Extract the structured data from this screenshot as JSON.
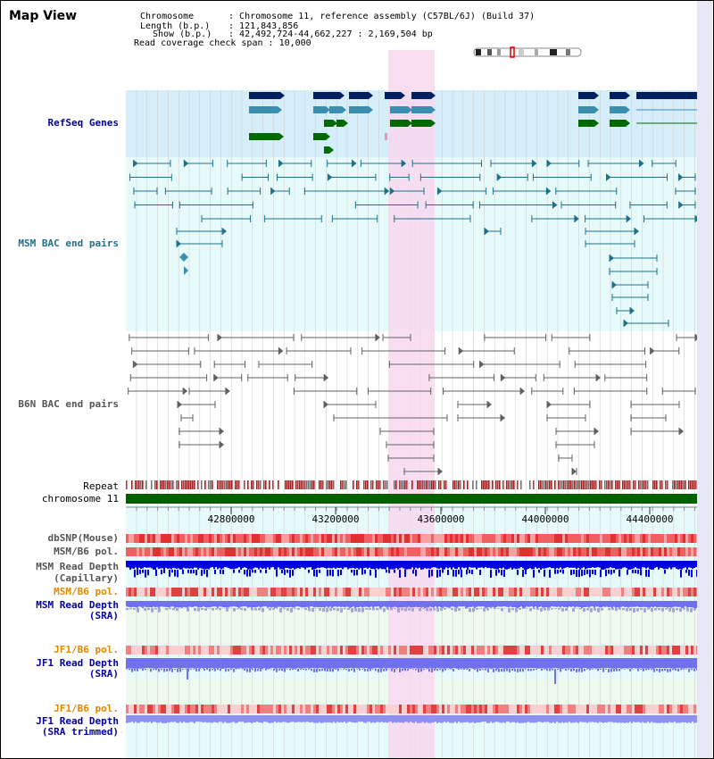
{
  "map_title": "Map View",
  "info": {
    "chromosome_label": "Chromosome",
    "chromosome_value": "Chromosome 11, reference assembly (C57BL/6J) (Build 37)",
    "length_label": "Length (b.p.)",
    "length_value": "121,843,856",
    "show_label": "Show (b.p.)",
    "show_value": "42,492,724-44,662,227 : 2,169,504 bp",
    "span_label": "Read coverage check span",
    "span_value": "10,000"
  },
  "tracks": {
    "refseq": "RefSeq Genes",
    "msm_bac": "MSM BAC end pairs",
    "b6n_bac": "B6N BAC end pairs",
    "repeat": "Repeat",
    "chromosome": "chromosome 11",
    "dbsnp": "dbSNP(Mouse)",
    "msm_b6_pol": "MSM/B6 pol.",
    "msm_depth_cap_1": "MSM Read Depth",
    "msm_depth_cap_2": "(Capillary)",
    "msm_b6_pol2": "MSM/B6 pol.",
    "msm_depth_sra_1": "MSM Read Depth",
    "msm_depth_sra_2": "(SRA)",
    "jf1_b6_pol": "JF1/B6 pol.",
    "jf1_depth_sra_1": "JF1 Read Depth",
    "jf1_depth_sra_2": "(SRA)",
    "jf1_b6_pol2": "JF1/B6 pol.",
    "jf1_depth_trim_1": "JF1 Read Depth",
    "jf1_depth_trim_2": "(SRA trimmed)"
  },
  "axis_ticks": [
    "42800000",
    "43200000",
    "43600000",
    "44000000",
    "44400000"
  ],
  "colors": {
    "refseq_band": "#d6eefa",
    "bac_band": "#e6fafa",
    "highlight": "#f8d8f0",
    "sra_band": "#eefaee",
    "gene_navy": "#002060",
    "gene_teal": "#3a8fb0",
    "gene_green": "#006a00",
    "msm_line": "#20708a",
    "b6n_line": "#606060",
    "chromosome_bar": "#006000",
    "depth_blue": "#0000e0",
    "depth_light": "#7070f0",
    "orange_label": "#e08800",
    "navy_label": "#0000a0"
  }
}
